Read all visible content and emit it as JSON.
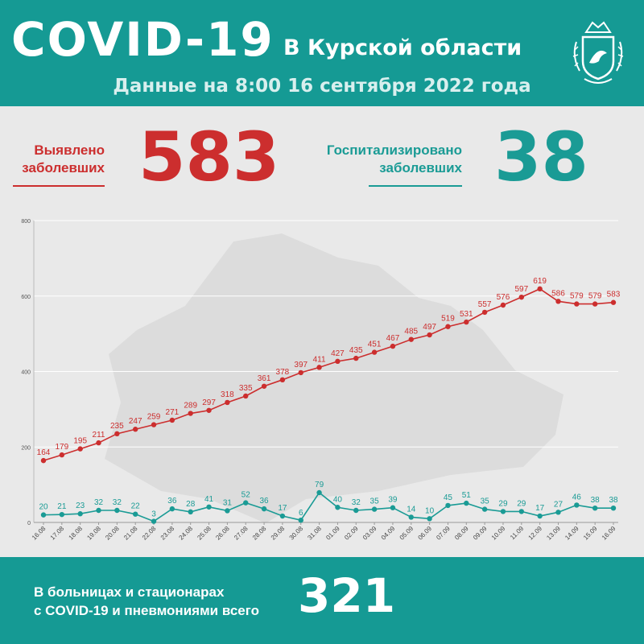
{
  "header": {
    "title": "COVID-19",
    "subtitle": "В Курской области",
    "date": "Данные на 8:00 16 сентября 2022 года",
    "emblem_icon": "coat-of-arms-icon"
  },
  "stats": {
    "detected_label_1": "Выявлено",
    "detected_label_2": "заболевших",
    "detected_value": "583",
    "hospitalized_label_1": "Госпитализировано",
    "hospitalized_label_2": "заболевших",
    "hospitalized_value": "38"
  },
  "footer": {
    "line1": "В больницах и стационарах",
    "line2": "с COVID-19 и пневмониями всего",
    "value": "321"
  },
  "colors": {
    "teal": "#159a94",
    "red": "#cc2e2e",
    "series_teal": "#1a9b95"
  },
  "chart_data": {
    "type": "line",
    "x": [
      "16.08",
      "17.08",
      "18.08",
      "19.08",
      "20.08",
      "21.08",
      "22.08",
      "23.08",
      "24.08",
      "25.08",
      "26.08",
      "27.08",
      "28.08",
      "29.08",
      "30.08",
      "31.08",
      "01.09",
      "02.09",
      "03.09",
      "04.09",
      "05.09",
      "06.09",
      "07.09",
      "08.09",
      "09.09",
      "10.09",
      "11.09",
      "12.09",
      "13.09",
      "14.09",
      "15.09",
      "16.09"
    ],
    "series": [
      {
        "color": "#cc2e2e",
        "values": [
          164,
          179,
          195,
          211,
          235,
          247,
          259,
          271,
          289,
          297,
          318,
          335,
          361,
          378,
          397,
          411,
          427,
          435,
          451,
          467,
          485,
          497,
          519,
          531,
          557,
          576,
          597,
          619,
          586,
          579,
          579,
          583
        ]
      },
      {
        "color": "#1a9b95",
        "values": [
          20,
          21,
          23,
          32,
          32,
          22,
          3,
          36,
          28,
          41,
          31,
          52,
          36,
          17,
          6,
          79,
          40,
          32,
          35,
          39,
          14,
          10,
          45,
          51,
          35,
          29,
          29,
          17,
          27,
          46,
          38,
          38
        ]
      }
    ],
    "ylim": [
      0,
      800
    ],
    "yticks": [
      "0",
      "200",
      "400",
      "600",
      "800"
    ],
    "grid": true
  }
}
